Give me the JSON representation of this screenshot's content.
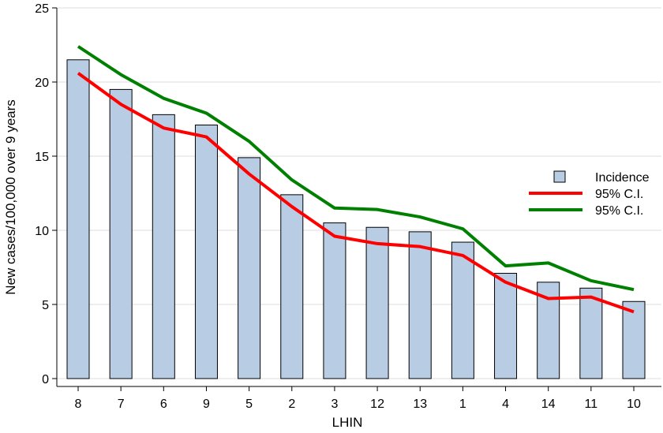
{
  "chart_data": {
    "type": "bar",
    "title": "",
    "xlabel": "LHIN",
    "ylabel": "New cases/100,000 over 9 years",
    "ylim": [
      0,
      25
    ],
    "yticks": [
      0,
      5,
      10,
      15,
      20,
      25
    ],
    "grid": true,
    "legend_position": "right",
    "categories": [
      "8",
      "7",
      "6",
      "9",
      "5",
      "2",
      "3",
      "12",
      "13",
      "1",
      "4",
      "14",
      "11",
      "10"
    ],
    "series": [
      {
        "name": "Incidence",
        "kind": "bar",
        "color": "#b8cce4",
        "values": [
          21.5,
          19.5,
          17.8,
          17.1,
          14.9,
          12.4,
          10.5,
          10.2,
          9.9,
          9.2,
          7.1,
          6.5,
          6.1,
          5.2
        ]
      },
      {
        "name": "95% C.I.",
        "kind": "line",
        "color": "#ff0000",
        "values": [
          20.6,
          18.5,
          16.9,
          16.3,
          13.8,
          11.6,
          9.6,
          9.1,
          8.9,
          8.3,
          6.5,
          5.4,
          5.5,
          4.5
        ]
      },
      {
        "name": "95% C.I.",
        "kind": "line",
        "color": "#008000",
        "values": [
          22.4,
          20.5,
          18.9,
          17.9,
          16.0,
          13.4,
          11.5,
          11.4,
          10.9,
          10.1,
          7.6,
          7.8,
          6.6,
          6.0
        ]
      }
    ]
  }
}
